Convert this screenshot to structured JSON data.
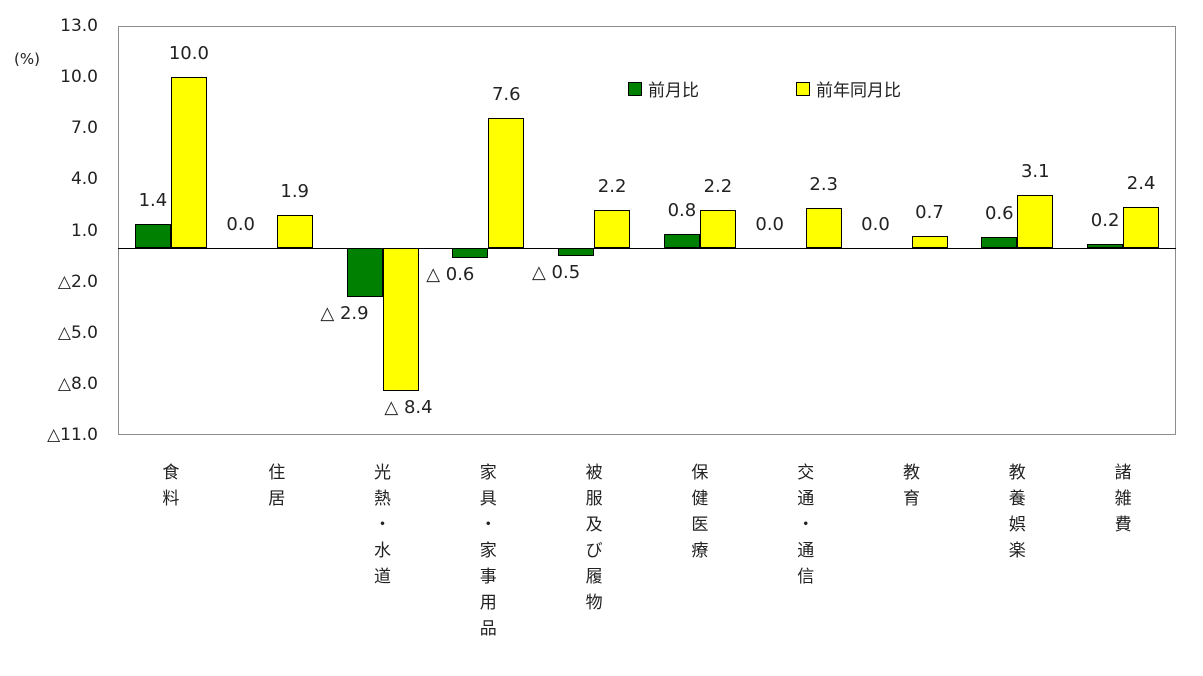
{
  "chart_data": {
    "type": "bar",
    "title": "",
    "ylabel": "(%)",
    "xlabel": "",
    "ylim": [
      -11,
      13
    ],
    "yticks": [
      13,
      10,
      7,
      4,
      1,
      -2,
      -5,
      -8,
      -11
    ],
    "ytick_labels": [
      "13.0",
      "10.0",
      "7.0",
      "4.0",
      "1.0",
      "△2.0",
      "△5.0",
      "△8.0",
      "△11.0"
    ],
    "categories": [
      "食料",
      "住居",
      "光熱・水道",
      "家具・家事用品",
      "被服及び履物",
      "保健医療",
      "交通・通信",
      "教育",
      "教養娯楽",
      "諸雑費"
    ],
    "series": [
      {
        "name": "前月比",
        "color": "#008000",
        "values": [
          1.4,
          0.0,
          -2.9,
          -0.6,
          -0.5,
          0.8,
          0.0,
          0.0,
          0.6,
          0.2
        ],
        "labels": [
          "1.4",
          "0.0",
          "△ 2.9",
          "△ 0.6",
          "△ 0.5",
          "0.8",
          "0.0",
          "0.0",
          "0.6",
          "0.2"
        ]
      },
      {
        "name": "前年同月比",
        "color": "#FFFF00",
        "values": [
          10.0,
          1.9,
          -8.4,
          7.6,
          2.2,
          2.2,
          2.3,
          0.7,
          3.1,
          2.4
        ],
        "labels": [
          "10.0",
          "1.9",
          "△ 8.4",
          "7.6",
          "2.2",
          "2.2",
          "2.3",
          "0.7",
          "3.1",
          "2.4"
        ]
      }
    ],
    "grid": false,
    "legend_position": "top-right-inside"
  },
  "unit_label": "(%)",
  "legend": [
    {
      "label": "前月比",
      "color": "#008000"
    },
    {
      "label": "前年同月比",
      "color": "#FFFF00"
    }
  ]
}
